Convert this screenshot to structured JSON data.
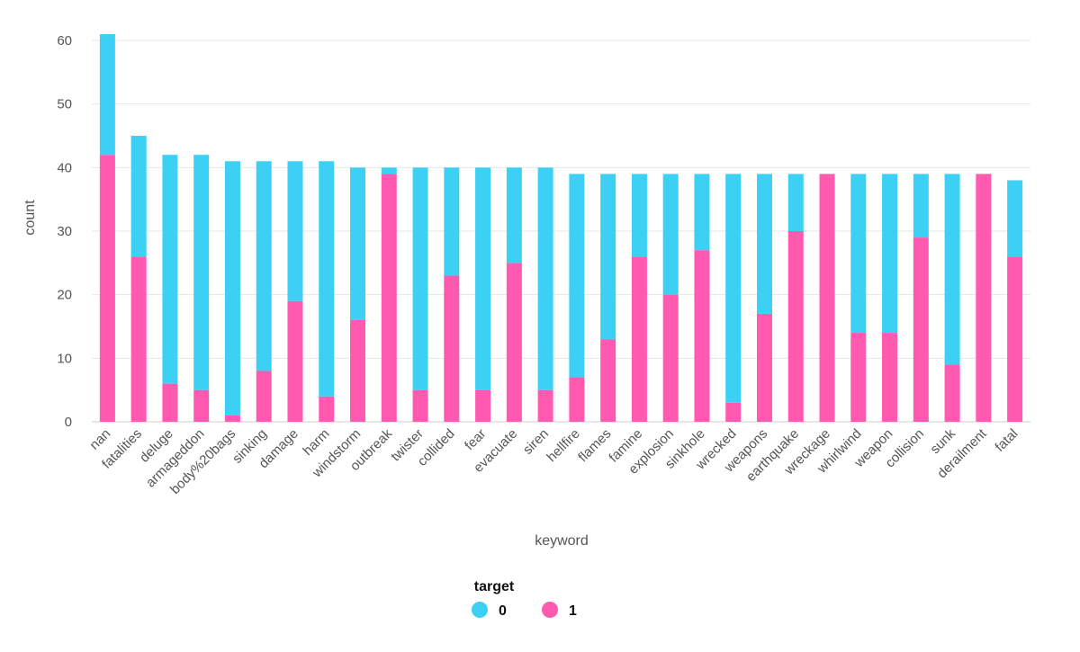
{
  "chart_data": {
    "type": "bar",
    "stacked": true,
    "xlabel": "keyword",
    "ylabel": "count",
    "ylim": [
      0,
      60
    ],
    "yticks": [
      0,
      10,
      20,
      30,
      40,
      50,
      60
    ],
    "grid": true,
    "categories": [
      "nan",
      "fatalities",
      "deluge",
      "armageddon",
      "body%20bags",
      "sinking",
      "damage",
      "harm",
      "windstorm",
      "outbreak",
      "twister",
      "collided",
      "fear",
      "evacuate",
      "siren",
      "hellfire",
      "flames",
      "famine",
      "explosion",
      "sinkhole",
      "wrecked",
      "weapons",
      "earthquake",
      "wreckage",
      "whirlwind",
      "weapon",
      "collision",
      "sunk",
      "derailment",
      "fatal"
    ],
    "series": [
      {
        "name": "1",
        "color": "#ff5aaf",
        "values": [
          42,
          26,
          6,
          5,
          1,
          8,
          19,
          4,
          16,
          39,
          5,
          23,
          5,
          25,
          5,
          7,
          13,
          26,
          20,
          27,
          3,
          17,
          30,
          39,
          14,
          14,
          29,
          9,
          39,
          26
        ]
      },
      {
        "name": "0",
        "color": "#3dd0f5",
        "values": [
          19,
          19,
          36,
          37,
          40,
          33,
          22,
          37,
          24,
          1,
          35,
          17,
          35,
          15,
          35,
          32,
          26,
          13,
          19,
          12,
          36,
          22,
          9,
          0,
          25,
          25,
          10,
          30,
          0,
          12
        ]
      }
    ],
    "legend": {
      "title": "target",
      "placement": "bottom-center",
      "items": [
        {
          "label": "0",
          "color": "#3dd0f5"
        },
        {
          "label": "1",
          "color": "#ff5aaf"
        }
      ]
    }
  }
}
